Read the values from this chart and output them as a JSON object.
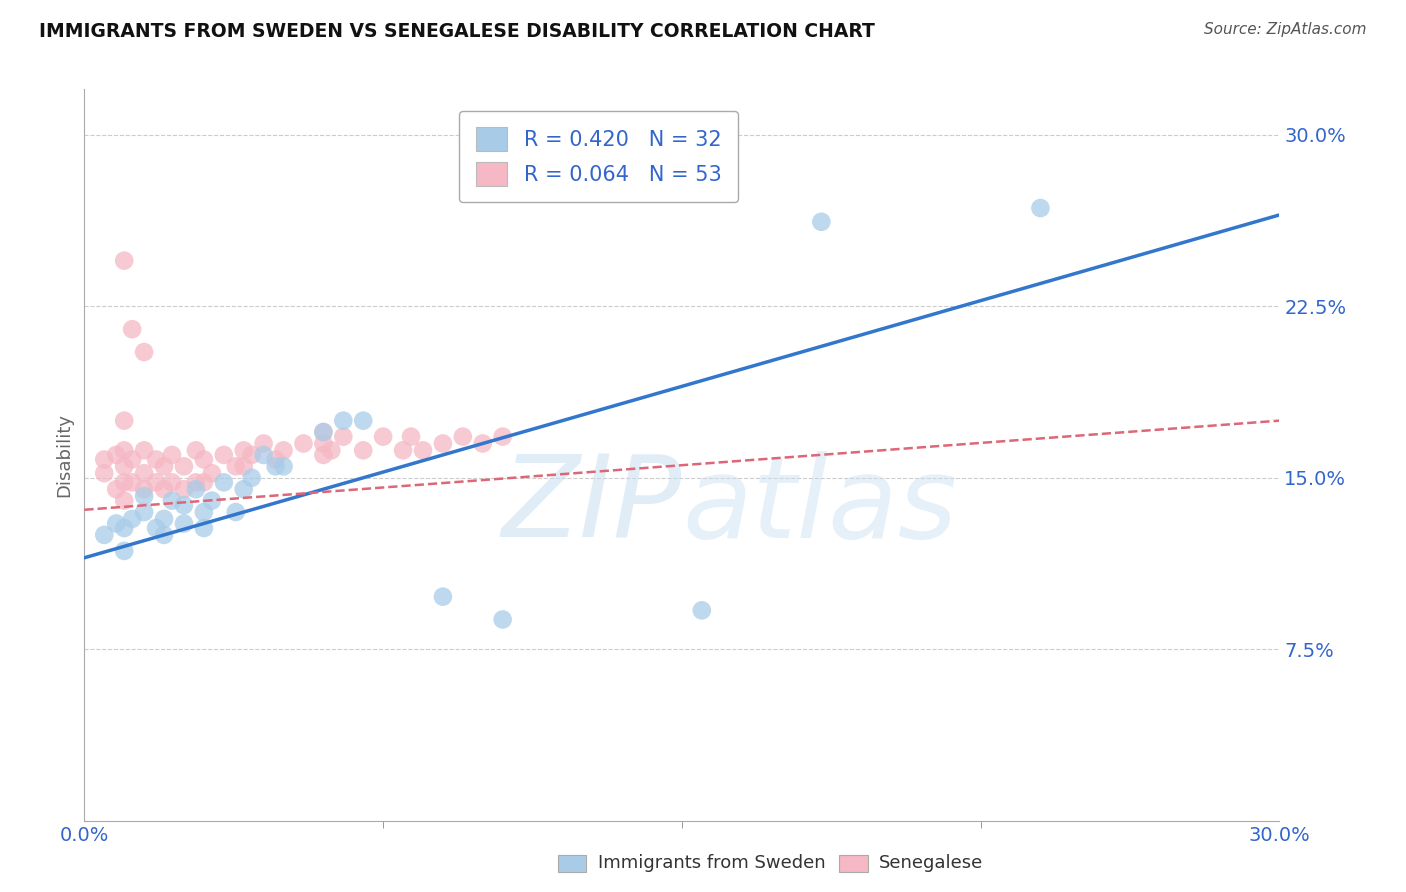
{
  "title": "IMMIGRANTS FROM SWEDEN VS SENEGALESE DISABILITY CORRELATION CHART",
  "source": "Source: ZipAtlas.com",
  "ylabel": "Disability",
  "xlim": [
    0.0,
    0.3
  ],
  "ylim": [
    0.0,
    0.32
  ],
  "yticks": [
    0.075,
    0.15,
    0.225,
    0.3
  ],
  "ytick_labels": [
    "7.5%",
    "15.0%",
    "22.5%",
    "30.0%"
  ],
  "xtick_vals": [
    0.0,
    0.3
  ],
  "xtick_labels": [
    "0.0%",
    "30.0%"
  ],
  "blue_color": "#a8cce8",
  "pink_color": "#f5b8c4",
  "blue_line_color": "#3377cc",
  "pink_line_color": "#dd6677",
  "blue_line_x0": 0.0,
  "blue_line_y0": 0.115,
  "blue_line_x1": 0.3,
  "blue_line_y1": 0.265,
  "pink_line_x0": 0.0,
  "pink_line_y0": 0.136,
  "pink_line_x1": 0.3,
  "pink_line_y1": 0.175,
  "blue_scatter_x": [
    0.005,
    0.008,
    0.01,
    0.01,
    0.012,
    0.015,
    0.015,
    0.018,
    0.02,
    0.02,
    0.022,
    0.025,
    0.025,
    0.028,
    0.03,
    0.03,
    0.032,
    0.035,
    0.038,
    0.04,
    0.042,
    0.045,
    0.048,
    0.05,
    0.06,
    0.065,
    0.07,
    0.09,
    0.105,
    0.155,
    0.185,
    0.24
  ],
  "blue_scatter_y": [
    0.125,
    0.13,
    0.118,
    0.128,
    0.132,
    0.135,
    0.142,
    0.128,
    0.125,
    0.132,
    0.14,
    0.13,
    0.138,
    0.145,
    0.128,
    0.135,
    0.14,
    0.148,
    0.135,
    0.145,
    0.15,
    0.16,
    0.155,
    0.155,
    0.17,
    0.175,
    0.175,
    0.098,
    0.088,
    0.092,
    0.262,
    0.268
  ],
  "pink_scatter_x": [
    0.005,
    0.005,
    0.008,
    0.008,
    0.01,
    0.01,
    0.01,
    0.01,
    0.01,
    0.012,
    0.012,
    0.015,
    0.015,
    0.015,
    0.018,
    0.018,
    0.02,
    0.02,
    0.022,
    0.022,
    0.025,
    0.025,
    0.028,
    0.028,
    0.03,
    0.03,
    0.032,
    0.035,
    0.038,
    0.04,
    0.042,
    0.045,
    0.048,
    0.05,
    0.055,
    0.06,
    0.06,
    0.062,
    0.065,
    0.07,
    0.075,
    0.08,
    0.082,
    0.085,
    0.09,
    0.095,
    0.1,
    0.105,
    0.01,
    0.012,
    0.015,
    0.04,
    0.06
  ],
  "pink_scatter_y": [
    0.152,
    0.158,
    0.145,
    0.16,
    0.14,
    0.148,
    0.155,
    0.162,
    0.175,
    0.148,
    0.158,
    0.145,
    0.152,
    0.162,
    0.148,
    0.158,
    0.145,
    0.155,
    0.148,
    0.16,
    0.145,
    0.155,
    0.148,
    0.162,
    0.148,
    0.158,
    0.152,
    0.16,
    0.155,
    0.162,
    0.16,
    0.165,
    0.158,
    0.162,
    0.165,
    0.16,
    0.17,
    0.162,
    0.168,
    0.162,
    0.168,
    0.162,
    0.168,
    0.162,
    0.165,
    0.168,
    0.165,
    0.168,
    0.245,
    0.215,
    0.205,
    0.155,
    0.165
  ],
  "watermark_part1": "ZIP",
  "watermark_part2": "atlas",
  "background_color": "#ffffff",
  "grid_color": "#cccccc",
  "legend_label_blue": "R = 0.420",
  "legend_N_blue": "N = 32",
  "legend_label_pink": "R = 0.064",
  "legend_N_pink": "N = 53",
  "bottom_legend_blue": "Immigrants from Sweden",
  "bottom_legend_pink": "Senegalese"
}
